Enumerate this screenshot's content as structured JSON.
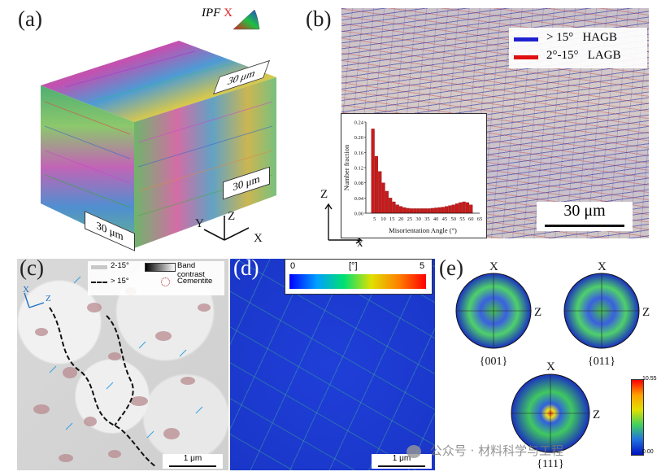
{
  "panels": {
    "a": {
      "label": "(a)",
      "ipf_label_prefix": "IPF",
      "ipf_label_suffix": "X",
      "scale_top": "30 μm",
      "scale_right": "30 μm",
      "scale_left": "30 μm",
      "axes": {
        "z": "Z",
        "y": "Y",
        "x": "X"
      }
    },
    "b": {
      "label": "(b)",
      "legend": [
        {
          "text": "> 15°   HAGB",
          "color": "#2020d0"
        },
        {
          "text": "2°-15°   LAGB",
          "color": "#e01010"
        }
      ],
      "scale": "30 μm",
      "axes": {
        "z": "Z",
        "x": "X"
      }
    },
    "c": {
      "label": "(c)",
      "legend_lagb": "2-15°",
      "legend_hagb": "> 15°",
      "legend_band": "Band contrast",
      "legend_cementite": "Cementite",
      "scale": "1 μm",
      "axes": {
        "x": "X",
        "z": "Z"
      }
    },
    "d": {
      "label": "(d)",
      "colorbar_min": "0",
      "colorbar_unit": "[°]",
      "colorbar_max": "5",
      "scale": "1 μm"
    },
    "e": {
      "label": "(e)",
      "poles": [
        {
          "name": "{001}",
          "x": "X",
          "z": "Z"
        },
        {
          "name": "{011}",
          "x": "X",
          "z": "Z"
        },
        {
          "name": "{111}",
          "x": "X",
          "z": "Z"
        }
      ],
      "colorbar_max": "10.55",
      "colorbar_min": "0.00"
    }
  },
  "chart_data": {
    "type": "bar",
    "xlabel": "Misorientation Angle (°)",
    "ylabel": "Number fraction",
    "ylim": [
      0,
      0.24
    ],
    "xlim": [
      0,
      65
    ],
    "yticks": [
      "0.00",
      "0.04",
      "0.08",
      "0.12",
      "0.16",
      "0.20",
      "0.24"
    ],
    "xticks": [
      "5",
      "10",
      "15",
      "20",
      "25",
      "30",
      "35",
      "40",
      "45",
      "50",
      "55",
      "60",
      "65"
    ],
    "x": [
      4,
      6,
      8,
      10,
      12,
      14,
      16,
      18,
      20,
      22,
      24,
      26,
      28,
      30,
      32,
      34,
      36,
      38,
      40,
      42,
      44,
      46,
      48,
      50,
      52,
      54,
      56,
      58,
      60
    ],
    "values": [
      0.222,
      0.15,
      0.11,
      0.08,
      0.058,
      0.04,
      0.03,
      0.022,
      0.018,
      0.015,
      0.013,
      0.012,
      0.012,
      0.012,
      0.012,
      0.012,
      0.012,
      0.013,
      0.014,
      0.015,
      0.016,
      0.018,
      0.02,
      0.022,
      0.025,
      0.028,
      0.03,
      0.028,
      0.022
    ]
  },
  "watermark": "公众号 · 材料科学与工程"
}
